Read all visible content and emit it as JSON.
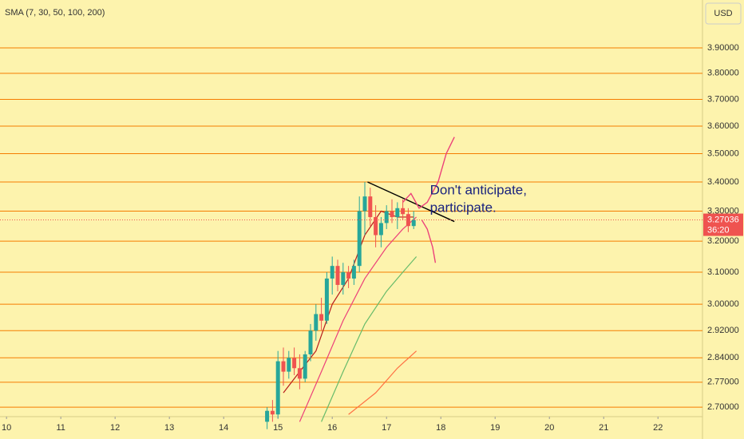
{
  "chart_data": {
    "type": "candlestick",
    "legend_text": "SMA (7, 30, 50, 100, 200)",
    "currency": "USD",
    "log_scale": true,
    "grid_color": "#f57c00",
    "up_color": "#26a69a",
    "down_color": "#ef5350",
    "xlim": [
      9.88,
      22.82
    ],
    "xticks": [
      10,
      11,
      12,
      13,
      14,
      15,
      16,
      17,
      18,
      19,
      20,
      21,
      22
    ],
    "ylim": [
      2.674,
      4.096
    ],
    "yticks": [
      {
        "value": 2.7,
        "label": "2.70000"
      },
      {
        "value": 2.77,
        "label": "2.77000"
      },
      {
        "value": 2.84,
        "label": "2.84000"
      },
      {
        "value": 2.92,
        "label": "2.92000"
      },
      {
        "value": 3.0,
        "label": "3.00000"
      },
      {
        "value": 3.1,
        "label": "3.10000"
      },
      {
        "value": 3.2,
        "label": "3.20000"
      },
      {
        "value": 3.3,
        "label": "3.30000"
      },
      {
        "value": 3.4,
        "label": "3.40000"
      },
      {
        "value": 3.5,
        "label": "3.50000"
      },
      {
        "value": 3.6,
        "label": "3.60000"
      },
      {
        "value": 3.7,
        "label": "3.70000"
      },
      {
        "value": 3.8,
        "label": "3.80000"
      },
      {
        "value": 3.9,
        "label": "3.90000"
      }
    ],
    "x": [
      14.8,
      14.9,
      15.0,
      15.1,
      15.2,
      15.3,
      15.4,
      15.5,
      15.6,
      15.7,
      15.8,
      15.9,
      16.0,
      16.1,
      16.2,
      16.3,
      16.4,
      16.5,
      16.6,
      16.7,
      16.8,
      16.9,
      17.0,
      17.1,
      17.2,
      17.3,
      17.4,
      17.5
    ],
    "open": [
      2.66,
      2.69,
      2.68,
      2.83,
      2.8,
      2.84,
      2.81,
      2.78,
      2.85,
      2.92,
      2.97,
      2.95,
      3.08,
      3.12,
      3.06,
      3.1,
      3.08,
      3.12,
      3.3,
      3.35,
      3.28,
      3.22,
      3.26,
      3.3,
      3.28,
      3.31,
      3.29,
      3.25
    ],
    "high": [
      2.7,
      2.72,
      2.86,
      2.87,
      2.86,
      2.87,
      2.85,
      2.86,
      2.94,
      3.0,
      3.02,
      3.1,
      3.15,
      3.14,
      3.13,
      3.12,
      3.14,
      3.35,
      3.4,
      3.38,
      3.32,
      3.28,
      3.32,
      3.34,
      3.33,
      3.34,
      3.31,
      3.3
    ],
    "low": [
      2.64,
      2.66,
      2.67,
      2.76,
      2.78,
      2.79,
      2.75,
      2.77,
      2.83,
      2.89,
      2.92,
      2.94,
      3.03,
      3.04,
      3.03,
      3.05,
      3.06,
      3.1,
      3.22,
      3.25,
      3.18,
      3.18,
      3.24,
      3.26,
      3.24,
      3.27,
      3.23,
      3.24
    ],
    "close": [
      2.69,
      2.68,
      2.83,
      2.8,
      2.84,
      2.81,
      2.78,
      2.85,
      2.92,
      2.97,
      2.95,
      3.08,
      3.12,
      3.06,
      3.1,
      3.08,
      3.12,
      3.3,
      3.35,
      3.28,
      3.22,
      3.26,
      3.3,
      3.28,
      3.31,
      3.29,
      3.25,
      3.27036
    ],
    "series": [
      {
        "color": "#b71c1c",
        "x": [
          15.1,
          15.4,
          15.7,
          16.0,
          16.3,
          16.6,
          16.9,
          17.2,
          17.5
        ],
        "values": [
          2.74,
          2.8,
          2.86,
          3.0,
          3.08,
          3.22,
          3.3,
          3.28,
          3.28
        ]
      },
      {
        "color": "#ec407a",
        "x": [
          15.4,
          15.8,
          16.2,
          16.6,
          17.0,
          17.3,
          17.55
        ],
        "values": [
          2.66,
          2.8,
          2.95,
          3.08,
          3.18,
          3.24,
          3.28
        ]
      },
      {
        "color": "#66bb6a",
        "x": [
          15.8,
          16.2,
          16.6,
          17.0,
          17.3,
          17.55
        ],
        "values": [
          2.66,
          2.8,
          2.94,
          3.04,
          3.1,
          3.15
        ]
      },
      {
        "color": "#ff7043",
        "x": [
          16.3,
          16.8,
          17.2,
          17.55
        ],
        "values": [
          2.68,
          2.74,
          2.81,
          2.86
        ]
      }
    ],
    "drawings": [
      {
        "color": "#000000",
        "x": [
          16.65,
          18.25
        ],
        "values": [
          3.4,
          3.265
        ]
      },
      {
        "color": "#ec407a",
        "x": [
          17.3,
          17.45,
          17.6,
          17.75,
          17.95,
          18.1,
          18.25
        ],
        "values": [
          3.33,
          3.36,
          3.31,
          3.33,
          3.4,
          3.5,
          3.56
        ]
      },
      {
        "color": "#ec407a",
        "x": [
          17.65,
          17.75,
          17.85,
          17.9
        ],
        "values": [
          3.27,
          3.24,
          3.18,
          3.13
        ]
      }
    ],
    "annotation_color": "#1a237e",
    "annotation_x": 17.8,
    "annotation_y": 3.37,
    "annotation_lines": [
      "Don't anticipate,",
      "participate."
    ],
    "last_price": {
      "value": 3.27036,
      "label": "3.27036"
    },
    "countdown": "36:20"
  }
}
